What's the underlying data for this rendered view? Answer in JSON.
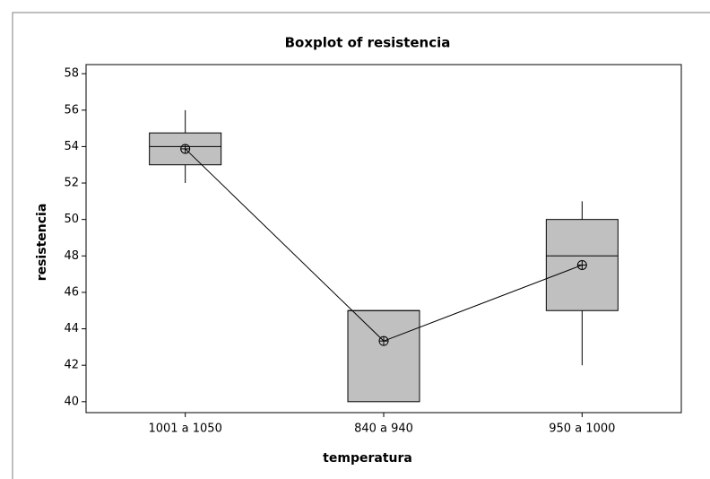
{
  "chart_data": {
    "type": "box",
    "title": "Boxplot of resistencia",
    "x_label": "temperatura",
    "y_label": "resistencia",
    "categories": [
      "1001 a 1050",
      "840 a 940",
      "950 a 1000"
    ],
    "boxes": [
      {
        "min": 52,
        "q1": 53,
        "median": 54,
        "q3": 54.75,
        "max": 56,
        "mean": 53.875
      },
      {
        "min": 40,
        "q1": 40,
        "median": 45,
        "q3": 45,
        "max": 45,
        "mean": 43.33
      },
      {
        "min": 42,
        "q1": 45,
        "median": 48,
        "q3": 50,
        "max": 51,
        "mean": 47.5
      }
    ],
    "color": "#c0c0c0",
    "ylim": [
      39.4,
      58.5
    ],
    "yticks": [
      40,
      42,
      44,
      46,
      48,
      50,
      52,
      54,
      56,
      58
    ]
  }
}
